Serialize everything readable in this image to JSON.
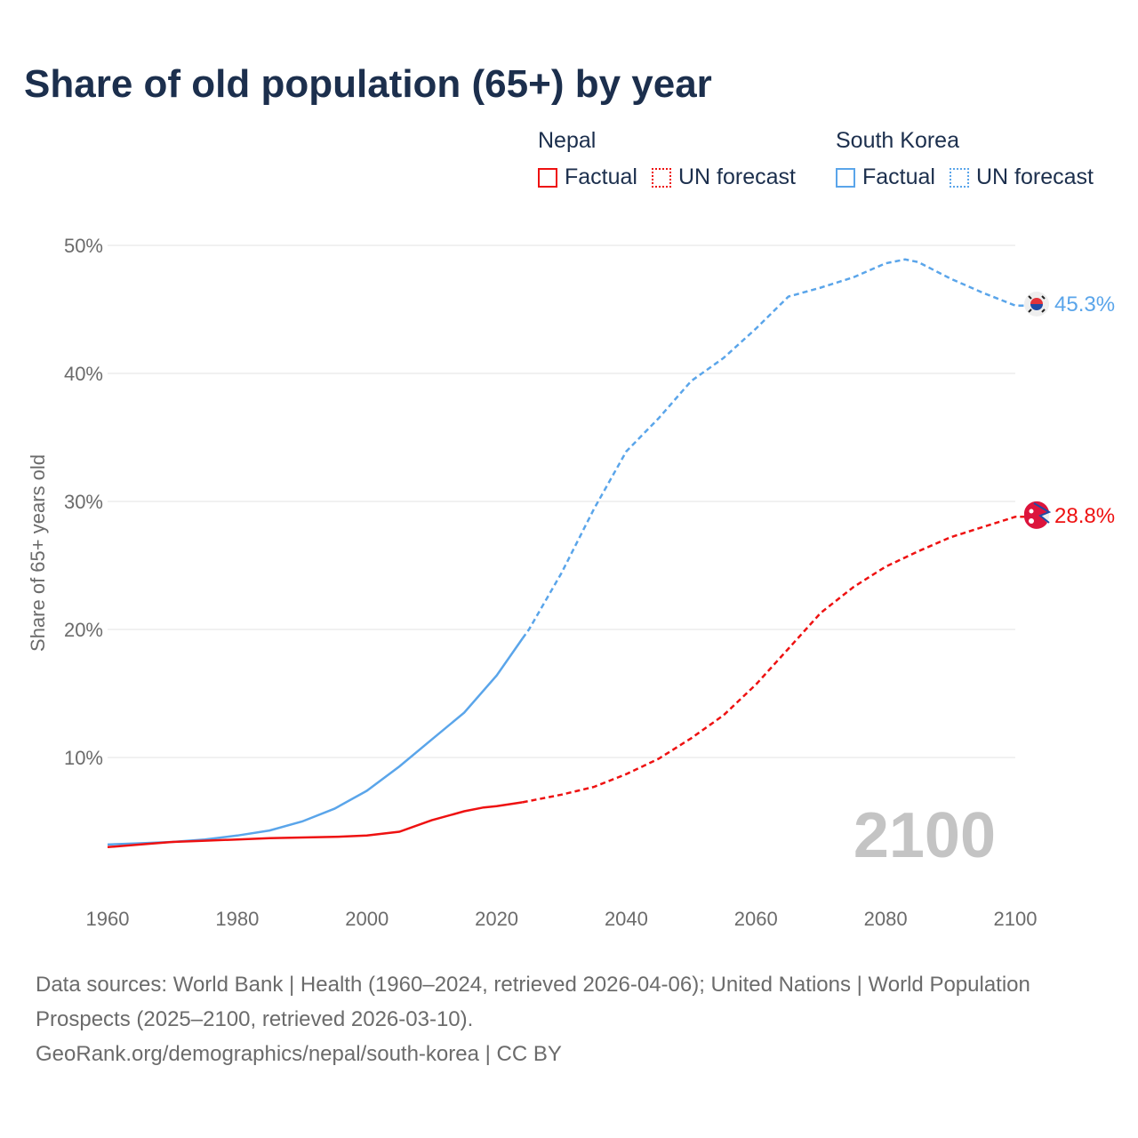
{
  "title": "Share of old population (65+) by year",
  "legend": {
    "groups": [
      {
        "name": "Nepal",
        "color": "#ee1111",
        "factual": "Factual",
        "forecast": "UN forecast"
      },
      {
        "name": "South Korea",
        "color": "#5aa5ea",
        "factual": "Factual",
        "forecast": "UN forecast"
      }
    ]
  },
  "chart_data": {
    "type": "line",
    "title": "Share of old population (65+) by year",
    "xlabel": "",
    "ylabel": "Share of 65+ years old",
    "xlim": [
      1960,
      2100
    ],
    "ylim": [
      0,
      50
    ],
    "x_ticks": [
      "1960",
      "1980",
      "2000",
      "2020",
      "2040",
      "2060",
      "2080",
      "2100"
    ],
    "y_ticks": [
      "10%",
      "20%",
      "30%",
      "40%",
      "50%"
    ],
    "grid": true,
    "year_watermark": "2100",
    "factual_until": 2024,
    "series": [
      {
        "name": "South Korea",
        "color": "#5aa5ea",
        "end_label": "45.3%",
        "points": [
          [
            1960,
            3.2
          ],
          [
            1965,
            3.3
          ],
          [
            1970,
            3.4
          ],
          [
            1975,
            3.6
          ],
          [
            1980,
            3.9
          ],
          [
            1985,
            4.3
          ],
          [
            1990,
            5.0
          ],
          [
            1995,
            6.0
          ],
          [
            2000,
            7.4
          ],
          [
            2005,
            9.3
          ],
          [
            2010,
            11.4
          ],
          [
            2015,
            13.5
          ],
          [
            2020,
            16.4
          ],
          [
            2024,
            19.3
          ],
          [
            2025,
            20.0
          ],
          [
            2030,
            24.4
          ],
          [
            2035,
            29.4
          ],
          [
            2040,
            33.9
          ],
          [
            2045,
            36.5
          ],
          [
            2050,
            39.4
          ],
          [
            2055,
            41.2
          ],
          [
            2060,
            43.5
          ],
          [
            2065,
            46.0
          ],
          [
            2070,
            46.7
          ],
          [
            2075,
            47.5
          ],
          [
            2080,
            48.6
          ],
          [
            2083,
            48.9
          ],
          [
            2085,
            48.7
          ],
          [
            2090,
            47.4
          ],
          [
            2095,
            46.3
          ],
          [
            2100,
            45.3
          ]
        ]
      },
      {
        "name": "Nepal",
        "color": "#ee1111",
        "end_label": "28.8%",
        "points": [
          [
            1960,
            3.0
          ],
          [
            1965,
            3.2
          ],
          [
            1970,
            3.4
          ],
          [
            1975,
            3.5
          ],
          [
            1980,
            3.6
          ],
          [
            1985,
            3.7
          ],
          [
            1990,
            3.75
          ],
          [
            1995,
            3.8
          ],
          [
            2000,
            3.9
          ],
          [
            2005,
            4.2
          ],
          [
            2010,
            5.1
          ],
          [
            2015,
            5.8
          ],
          [
            2018,
            6.1
          ],
          [
            2020,
            6.2
          ],
          [
            2024,
            6.5
          ],
          [
            2030,
            7.1
          ],
          [
            2035,
            7.7
          ],
          [
            2040,
            8.7
          ],
          [
            2045,
            9.9
          ],
          [
            2050,
            11.5
          ],
          [
            2055,
            13.3
          ],
          [
            2060,
            15.7
          ],
          [
            2065,
            18.5
          ],
          [
            2070,
            21.3
          ],
          [
            2075,
            23.3
          ],
          [
            2080,
            24.9
          ],
          [
            2085,
            26.1
          ],
          [
            2090,
            27.2
          ],
          [
            2095,
            28.0
          ],
          [
            2100,
            28.8
          ]
        ]
      }
    ]
  },
  "footer": {
    "sources": "Data sources: World Bank | Health (1960–2024, retrieved 2026-04-06); United Nations | World Population Prospects (2025–2100, retrieved 2026-03-10).",
    "credit": "GeoRank.org/demographics/nepal/south-korea | CC BY"
  }
}
